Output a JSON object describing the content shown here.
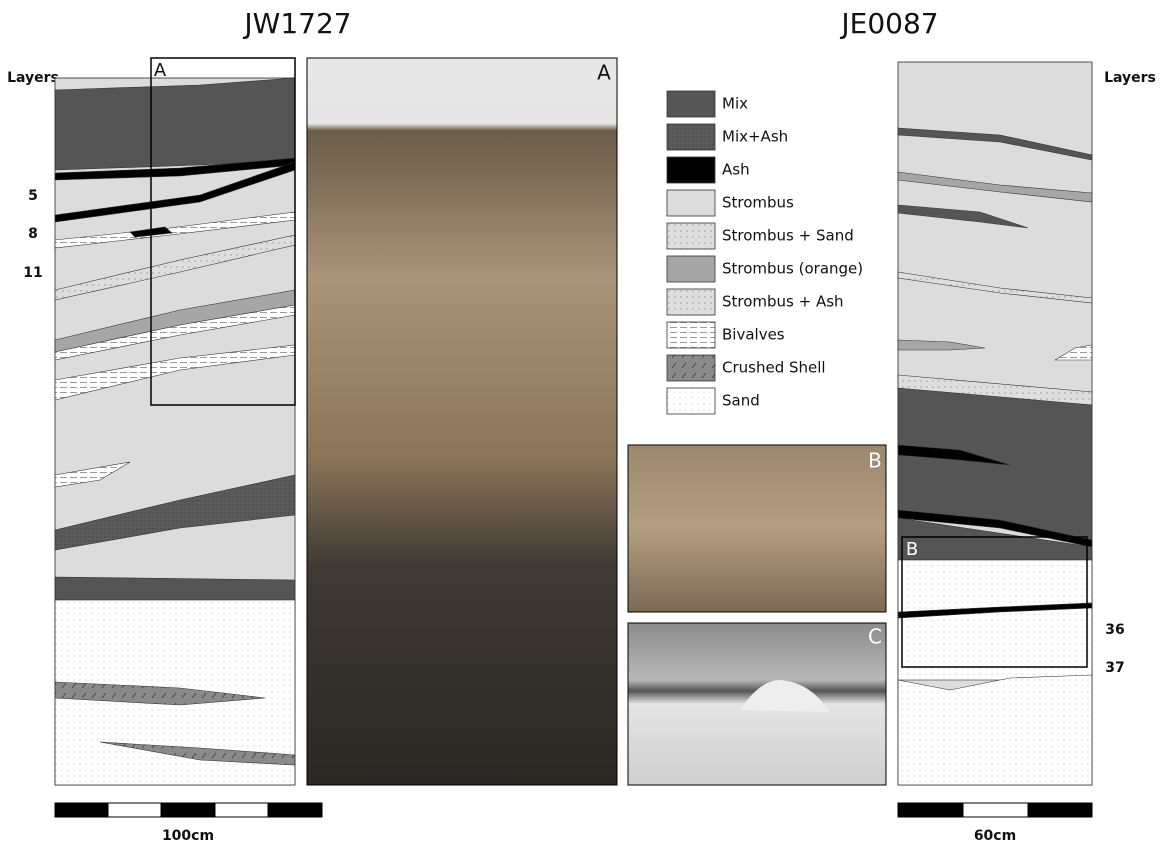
{
  "sections": [
    {
      "title": "JW1727",
      "layers_label": "Layers",
      "layer_numbers": [
        "5",
        "8",
        "11"
      ],
      "box_label": "A",
      "scale_label": "100cm"
    },
    {
      "title": "JE0087",
      "layers_label": "Layers",
      "layer_numbers": [
        "36",
        "37"
      ],
      "box_label": "B",
      "scale_label": "60cm"
    }
  ],
  "photos": [
    {
      "label": "A"
    },
    {
      "label": "B"
    },
    {
      "label": "C"
    }
  ],
  "legend": [
    {
      "label": "Mix"
    },
    {
      "label": "Mix+Ash"
    },
    {
      "label": "Ash"
    },
    {
      "label": "Strombus"
    },
    {
      "label": "Strombus + Sand"
    },
    {
      "label": "Strombus (orange)"
    },
    {
      "label": "Strombus + Ash"
    },
    {
      "label": "Bivalves"
    },
    {
      "label": "Crushed Shell"
    },
    {
      "label": "Sand"
    }
  ]
}
